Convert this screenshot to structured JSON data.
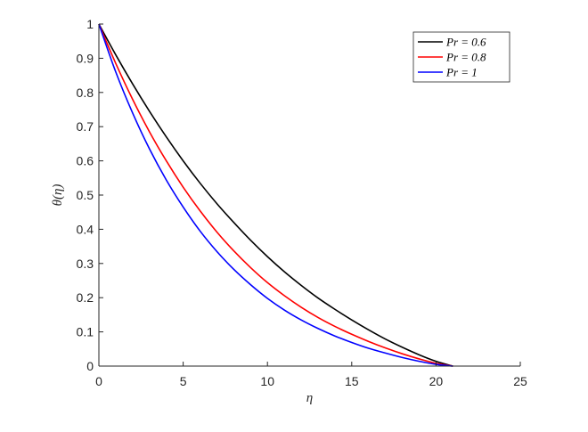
{
  "chart_data": {
    "type": "line",
    "xlabel": "η",
    "ylabel": "θ(η)",
    "xlim": [
      0,
      25
    ],
    "ylim": [
      0,
      1
    ],
    "x_ticks": [
      0,
      5,
      10,
      15,
      20,
      25
    ],
    "y_ticks": [
      0,
      0.1,
      0.2,
      0.3,
      0.4,
      0.5,
      0.6,
      0.7,
      0.8,
      0.9,
      1
    ],
    "x_tick_labels": [
      "0",
      "5",
      "10",
      "15",
      "20",
      "25"
    ],
    "y_tick_labels": [
      "0",
      "0.1",
      "0.2",
      "0.3",
      "0.4",
      "0.5",
      "0.6",
      "0.7",
      "0.8",
      "0.9",
      "1"
    ],
    "grid": false,
    "legend_position": "top-right",
    "series": [
      {
        "name": "Pr = 0.6",
        "color": "#000000",
        "x": [
          0,
          1,
          2,
          3,
          4,
          5,
          6,
          7,
          8,
          9,
          10,
          11,
          12,
          13,
          14,
          15,
          16,
          17,
          18,
          19,
          20,
          21
        ],
        "y": [
          1.0,
          0.91,
          0.825,
          0.745,
          0.67,
          0.6,
          0.535,
          0.475,
          0.42,
          0.368,
          0.32,
          0.276,
          0.236,
          0.199,
          0.166,
          0.135,
          0.106,
          0.079,
          0.055,
          0.033,
          0.014,
          0.0
        ]
      },
      {
        "name": "Pr = 0.8",
        "color": "#ff0000",
        "x": [
          0,
          1,
          2,
          3,
          4,
          5,
          6,
          7,
          8,
          9,
          10,
          11,
          12,
          13,
          14,
          15,
          16,
          17,
          18,
          19,
          20,
          21
        ],
        "y": [
          1.0,
          0.885,
          0.78,
          0.685,
          0.6,
          0.523,
          0.454,
          0.392,
          0.337,
          0.288,
          0.244,
          0.206,
          0.172,
          0.142,
          0.116,
          0.093,
          0.072,
          0.053,
          0.036,
          0.021,
          0.008,
          0.0
        ]
      },
      {
        "name": "Pr = 1",
        "color": "#0000ff",
        "x": [
          0,
          1,
          2,
          3,
          4,
          5,
          6,
          7,
          8,
          9,
          10,
          11,
          12,
          13,
          14,
          15,
          16,
          17,
          18,
          19,
          20,
          21
        ],
        "y": [
          1.0,
          0.86,
          0.74,
          0.635,
          0.544,
          0.465,
          0.395,
          0.335,
          0.283,
          0.238,
          0.198,
          0.164,
          0.135,
          0.11,
          0.088,
          0.069,
          0.052,
          0.038,
          0.025,
          0.014,
          0.005,
          0.0
        ]
      }
    ]
  }
}
